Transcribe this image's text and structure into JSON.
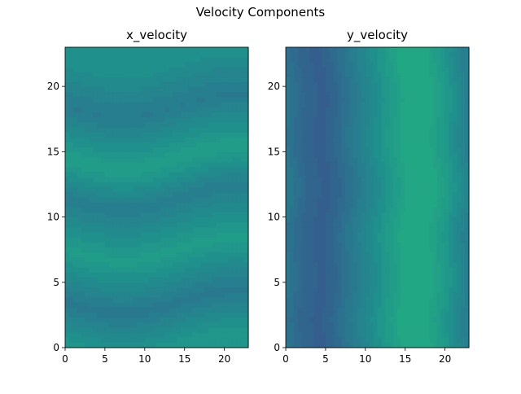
{
  "figure": {
    "suptitle": "Velocity Components"
  },
  "chart_data": [
    {
      "type": "heatmap",
      "title": "x_velocity",
      "xlabel": "",
      "ylabel": "",
      "xlim": [
        0,
        23
      ],
      "ylim": [
        0,
        23
      ],
      "xticks": [
        0,
        5,
        10,
        15,
        20
      ],
      "yticks": [
        0,
        5,
        10,
        15,
        20
      ],
      "grid": false,
      "colormap": "viridis",
      "color_range": [
        0.35,
        0.6
      ],
      "pattern": "horizontal wavy bands",
      "band_centers_y": [
        0.5,
        3.5,
        7.5,
        11.5,
        14.5,
        18.5,
        22
      ],
      "band_values": [
        0.52,
        0.4,
        0.55,
        0.42,
        0.56,
        0.41,
        0.5
      ]
    },
    {
      "type": "heatmap",
      "title": "y_velocity",
      "xlabel": "",
      "ylabel": "",
      "xlim": [
        0,
        23
      ],
      "ylim": [
        0,
        23
      ],
      "xticks": [
        0,
        5,
        10,
        15,
        20
      ],
      "yticks": [
        0,
        5,
        10,
        15,
        20
      ],
      "grid": false,
      "colormap": "viridis",
      "color_range": [
        0.3,
        0.62
      ],
      "pattern": "vertical bands",
      "column_profile_x": [
        0,
        1,
        2,
        3,
        4,
        5,
        6,
        7,
        8,
        9,
        10,
        11,
        12,
        13,
        14,
        15,
        16,
        17,
        18,
        19,
        20,
        21,
        22,
        23
      ],
      "column_profile_values": [
        0.4,
        0.37,
        0.34,
        0.32,
        0.31,
        0.31,
        0.33,
        0.36,
        0.39,
        0.42,
        0.45,
        0.48,
        0.51,
        0.54,
        0.57,
        0.6,
        0.61,
        0.61,
        0.6,
        0.57,
        0.54,
        0.5,
        0.46,
        0.42
      ]
    }
  ]
}
